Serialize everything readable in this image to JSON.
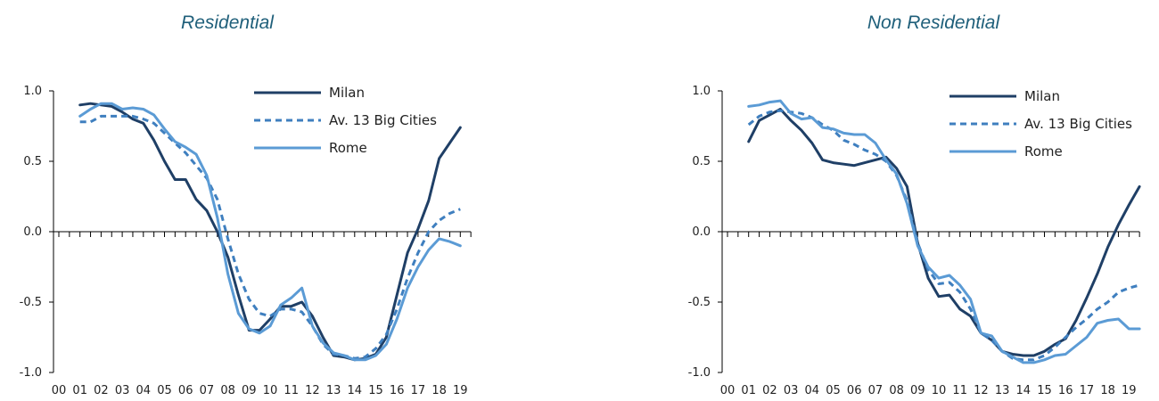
{
  "chart_data": [
    {
      "type": "line",
      "title": "Residential",
      "x": [
        "00",
        "01",
        "02",
        "03",
        "04",
        "05",
        "06",
        "07",
        "08",
        "09",
        "10",
        "11",
        "12",
        "13",
        "14",
        "15",
        "16",
        "17",
        "18",
        "19"
      ],
      "ylim": [
        -1.0,
        1.0
      ],
      "yticks": [
        "1.0",
        "0.5",
        "0.0",
        "-0.5",
        "-1.0"
      ],
      "legend_position": "top-right",
      "series": [
        {
          "name": "Milan",
          "color": "#1f3f66",
          "style": "solid",
          "points": [
            [
              1,
              0.9
            ],
            [
              1.5,
              0.91
            ],
            [
              2,
              0.9
            ],
            [
              2.5,
              0.89
            ],
            [
              3,
              0.85
            ],
            [
              3.5,
              0.8
            ],
            [
              4,
              0.77
            ],
            [
              4.5,
              0.65
            ],
            [
              5,
              0.5
            ],
            [
              5.5,
              0.37
            ],
            [
              6,
              0.37
            ],
            [
              6.5,
              0.23
            ],
            [
              7,
              0.15
            ],
            [
              7.5,
              0.0
            ],
            [
              8,
              -0.18
            ],
            [
              8.5,
              -0.45
            ],
            [
              9,
              -0.7
            ],
            [
              9.5,
              -0.7
            ],
            [
              10,
              -0.62
            ],
            [
              10.5,
              -0.53
            ],
            [
              11,
              -0.53
            ],
            [
              11.5,
              -0.5
            ],
            [
              12,
              -0.6
            ],
            [
              12.5,
              -0.75
            ],
            [
              13,
              -0.88
            ],
            [
              13.5,
              -0.89
            ],
            [
              14,
              -0.91
            ],
            [
              14.5,
              -0.9
            ],
            [
              15,
              -0.87
            ],
            [
              15.5,
              -0.75
            ],
            [
              16,
              -0.45
            ],
            [
              16.5,
              -0.15
            ],
            [
              17,
              0.02
            ],
            [
              17.5,
              0.22
            ],
            [
              18,
              0.52
            ],
            [
              18.5,
              0.63
            ],
            [
              19,
              0.74
            ]
          ]
        },
        {
          "name": "Av. 13 Big Cities",
          "color": "#3f7fbf",
          "style": "dashed",
          "points": [
            [
              1,
              0.78
            ],
            [
              1.5,
              0.78
            ],
            [
              2,
              0.82
            ],
            [
              2.5,
              0.82
            ],
            [
              3,
              0.82
            ],
            [
              3.5,
              0.82
            ],
            [
              4,
              0.8
            ],
            [
              4.5,
              0.77
            ],
            [
              5,
              0.7
            ],
            [
              5.5,
              0.63
            ],
            [
              6,
              0.56
            ],
            [
              6.5,
              0.47
            ],
            [
              7,
              0.38
            ],
            [
              7.5,
              0.23
            ],
            [
              8,
              -0.05
            ],
            [
              8.5,
              -0.3
            ],
            [
              9,
              -0.48
            ],
            [
              9.5,
              -0.58
            ],
            [
              10,
              -0.6
            ],
            [
              10.5,
              -0.55
            ],
            [
              11,
              -0.55
            ],
            [
              11.5,
              -0.57
            ],
            [
              12,
              -0.67
            ],
            [
              12.5,
              -0.8
            ],
            [
              13,
              -0.87
            ],
            [
              13.5,
              -0.88
            ],
            [
              14,
              -0.9
            ],
            [
              14.5,
              -0.89
            ],
            [
              15,
              -0.83
            ],
            [
              15.5,
              -0.73
            ],
            [
              16,
              -0.55
            ],
            [
              16.5,
              -0.33
            ],
            [
              17,
              -0.15
            ],
            [
              17.5,
              0.0
            ],
            [
              18,
              0.08
            ],
            [
              18.5,
              0.13
            ],
            [
              19,
              0.16
            ]
          ]
        },
        {
          "name": "Rome",
          "color": "#5b9bd5",
          "style": "solid",
          "points": [
            [
              1,
              0.82
            ],
            [
              1.5,
              0.87
            ],
            [
              2,
              0.91
            ],
            [
              2.5,
              0.91
            ],
            [
              3,
              0.87
            ],
            [
              3.5,
              0.88
            ],
            [
              4,
              0.87
            ],
            [
              4.5,
              0.83
            ],
            [
              5,
              0.73
            ],
            [
              5.5,
              0.64
            ],
            [
              6,
              0.6
            ],
            [
              6.5,
              0.55
            ],
            [
              7,
              0.4
            ],
            [
              7.5,
              0.1
            ],
            [
              8,
              -0.3
            ],
            [
              8.5,
              -0.58
            ],
            [
              9,
              -0.69
            ],
            [
              9.5,
              -0.72
            ],
            [
              10,
              -0.67
            ],
            [
              10.5,
              -0.52
            ],
            [
              11,
              -0.47
            ],
            [
              11.5,
              -0.4
            ],
            [
              12,
              -0.67
            ],
            [
              12.5,
              -0.79
            ],
            [
              13,
              -0.86
            ],
            [
              13.5,
              -0.88
            ],
            [
              14,
              -0.91
            ],
            [
              14.5,
              -0.91
            ],
            [
              15,
              -0.88
            ],
            [
              15.5,
              -0.8
            ],
            [
              16,
              -0.62
            ],
            [
              16.5,
              -0.4
            ],
            [
              17,
              -0.25
            ],
            [
              17.5,
              -0.13
            ],
            [
              18,
              -0.05
            ],
            [
              18.5,
              -0.07
            ],
            [
              19,
              -0.1
            ]
          ]
        }
      ]
    },
    {
      "type": "line",
      "title": "Non Residential",
      "x": [
        "00",
        "01",
        "02",
        "03",
        "04",
        "05",
        "06",
        "07",
        "08",
        "09",
        "10",
        "11",
        "12",
        "13",
        "14",
        "15",
        "16",
        "17",
        "18",
        "19"
      ],
      "ylim": [
        -1.0,
        1.0
      ],
      "yticks": [
        "1.0",
        "0.5",
        "0.0",
        "-0.5",
        "-1.0"
      ],
      "legend_position": "top-right",
      "series": [
        {
          "name": "Milan",
          "color": "#1f3f66",
          "style": "solid",
          "points": [
            [
              1,
              0.64
            ],
            [
              1.5,
              0.79
            ],
            [
              2,
              0.83
            ],
            [
              2.5,
              0.87
            ],
            [
              3,
              0.79
            ],
            [
              3.5,
              0.72
            ],
            [
              4,
              0.63
            ],
            [
              4.5,
              0.51
            ],
            [
              5,
              0.49
            ],
            [
              5.5,
              0.48
            ],
            [
              6,
              0.47
            ],
            [
              6.5,
              0.49
            ],
            [
              7,
              0.51
            ],
            [
              7.5,
              0.53
            ],
            [
              8,
              0.45
            ],
            [
              8.5,
              0.32
            ],
            [
              9,
              -0.08
            ],
            [
              9.5,
              -0.33
            ],
            [
              10,
              -0.46
            ],
            [
              10.5,
              -0.45
            ],
            [
              11,
              -0.55
            ],
            [
              11.5,
              -0.6
            ],
            [
              12,
              -0.72
            ],
            [
              12.5,
              -0.77
            ],
            [
              13,
              -0.85
            ],
            [
              13.5,
              -0.87
            ],
            [
              14,
              -0.88
            ],
            [
              14.5,
              -0.88
            ],
            [
              15,
              -0.85
            ],
            [
              15.5,
              -0.8
            ],
            [
              16,
              -0.76
            ],
            [
              16.5,
              -0.63
            ],
            [
              17,
              -0.47
            ],
            [
              17.5,
              -0.3
            ],
            [
              18,
              -0.11
            ],
            [
              18.5,
              0.05
            ],
            [
              19,
              0.19
            ],
            [
              19.5,
              0.32
            ]
          ]
        },
        {
          "name": "Av. 13 Big Cities",
          "color": "#3f7fbf",
          "style": "dashed",
          "points": [
            [
              1,
              0.76
            ],
            [
              1.5,
              0.82
            ],
            [
              2,
              0.85
            ],
            [
              2.5,
              0.86
            ],
            [
              3,
              0.85
            ],
            [
              3.5,
              0.84
            ],
            [
              4,
              0.81
            ],
            [
              4.5,
              0.76
            ],
            [
              5,
              0.72
            ],
            [
              5.5,
              0.65
            ],
            [
              6,
              0.62
            ],
            [
              6.5,
              0.58
            ],
            [
              7,
              0.55
            ],
            [
              7.5,
              0.5
            ],
            [
              8,
              0.4
            ],
            [
              8.5,
              0.22
            ],
            [
              9,
              -0.08
            ],
            [
              9.5,
              -0.27
            ],
            [
              10,
              -0.37
            ],
            [
              10.5,
              -0.36
            ],
            [
              11,
              -0.43
            ],
            [
              11.5,
              -0.55
            ],
            [
              12,
              -0.72
            ],
            [
              12.5,
              -0.77
            ],
            [
              13,
              -0.85
            ],
            [
              13.5,
              -0.9
            ],
            [
              14,
              -0.91
            ],
            [
              14.5,
              -0.91
            ],
            [
              15,
              -0.88
            ],
            [
              15.5,
              -0.82
            ],
            [
              16,
              -0.75
            ],
            [
              16.5,
              -0.68
            ],
            [
              17,
              -0.62
            ],
            [
              17.5,
              -0.55
            ],
            [
              18,
              -0.5
            ],
            [
              18.5,
              -0.43
            ],
            [
              19,
              -0.4
            ],
            [
              19.5,
              -0.38
            ]
          ]
        },
        {
          "name": "Rome",
          "color": "#5b9bd5",
          "style": "solid",
          "points": [
            [
              1,
              0.89
            ],
            [
              1.5,
              0.9
            ],
            [
              2,
              0.92
            ],
            [
              2.5,
              0.93
            ],
            [
              3,
              0.84
            ],
            [
              3.5,
              0.8
            ],
            [
              4,
              0.81
            ],
            [
              4.5,
              0.74
            ],
            [
              5,
              0.73
            ],
            [
              5.5,
              0.7
            ],
            [
              6,
              0.69
            ],
            [
              6.5,
              0.69
            ],
            [
              7,
              0.63
            ],
            [
              7.5,
              0.51
            ],
            [
              8,
              0.41
            ],
            [
              8.5,
              0.2
            ],
            [
              9,
              -0.1
            ],
            [
              9.5,
              -0.25
            ],
            [
              10,
              -0.33
            ],
            [
              10.5,
              -0.31
            ],
            [
              11,
              -0.38
            ],
            [
              11.5,
              -0.48
            ],
            [
              12,
              -0.72
            ],
            [
              12.5,
              -0.74
            ],
            [
              13,
              -0.85
            ],
            [
              13.5,
              -0.89
            ],
            [
              14,
              -0.93
            ],
            [
              14.5,
              -0.93
            ],
            [
              15,
              -0.91
            ],
            [
              15.5,
              -0.88
            ],
            [
              16,
              -0.87
            ],
            [
              16.5,
              -0.81
            ],
            [
              17,
              -0.75
            ],
            [
              17.5,
              -0.65
            ],
            [
              18,
              -0.63
            ],
            [
              18.5,
              -0.62
            ],
            [
              19,
              -0.69
            ],
            [
              19.5,
              -0.69
            ]
          ]
        }
      ]
    }
  ]
}
